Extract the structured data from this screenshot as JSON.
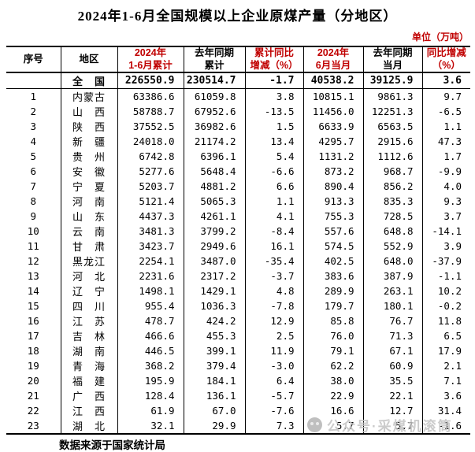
{
  "title": "2024年1-6月全国规模以上企业原煤产量（分地区）",
  "unit_label": "单位（万吨）",
  "colors": {
    "header_accent_red": "#c00000",
    "text_black": "#000000",
    "watermark_gray": "#c3c3c3"
  },
  "table": {
    "headers": [
      {
        "lines": [
          "序号"
        ],
        "color": "black"
      },
      {
        "lines": [
          "地区"
        ],
        "color": "black"
      },
      {
        "lines": [
          "2024年",
          "1-6月累计"
        ],
        "color": "red"
      },
      {
        "lines": [
          "去年同期",
          "累计"
        ],
        "color": "black"
      },
      {
        "lines": [
          "累计同比",
          "增减（%）"
        ],
        "color": "red"
      },
      {
        "lines": [
          "2024年",
          "6月当月"
        ],
        "color": "red"
      },
      {
        "lines": [
          "去年同期",
          "当月"
        ],
        "color": "black"
      },
      {
        "lines": [
          "同比增减",
          "（%）"
        ],
        "color": "red"
      }
    ],
    "total_row": {
      "seq": "",
      "region": "全　国",
      "values": [
        "226550.9",
        "230514.7",
        "-1.7",
        "40538.2",
        "39125.9",
        "3.6"
      ]
    },
    "rows": [
      {
        "seq": "1",
        "region": "内蒙古",
        "values": [
          "63386.6",
          "61059.8",
          "3.8",
          "10815.1",
          "9861.3",
          "9.7"
        ]
      },
      {
        "seq": "2",
        "region": "山　西",
        "values": [
          "58788.7",
          "67952.6",
          "-13.5",
          "11456.0",
          "12251.3",
          "-6.5"
        ]
      },
      {
        "seq": "3",
        "region": "陕　西",
        "values": [
          "37552.5",
          "36982.6",
          "1.5",
          "6633.9",
          "6563.5",
          "1.1"
        ]
      },
      {
        "seq": "4",
        "region": "新　疆",
        "values": [
          "24018.0",
          "21174.2",
          "13.4",
          "4295.7",
          "2915.6",
          "47.3"
        ]
      },
      {
        "seq": "5",
        "region": "贵　州",
        "values": [
          "6742.8",
          "6396.1",
          "5.4",
          "1131.2",
          "1112.6",
          "1.7"
        ]
      },
      {
        "seq": "6",
        "region": "安　徽",
        "values": [
          "5277.6",
          "5648.4",
          "-6.6",
          "873.2",
          "968.7",
          "-9.9"
        ]
      },
      {
        "seq": "7",
        "region": "宁　夏",
        "values": [
          "5203.7",
          "4881.2",
          "6.6",
          "890.4",
          "856.2",
          "4.0"
        ]
      },
      {
        "seq": "8",
        "region": "河　南",
        "values": [
          "5121.4",
          "5065.3",
          "1.1",
          "913.3",
          "835.3",
          "9.3"
        ]
      },
      {
        "seq": "9",
        "region": "山　东",
        "values": [
          "4437.3",
          "4261.1",
          "4.1",
          "755.3",
          "728.5",
          "3.7"
        ]
      },
      {
        "seq": "10",
        "region": "云　南",
        "values": [
          "3481.3",
          "3799.2",
          "-8.4",
          "557.6",
          "648.8",
          "-14.1"
        ]
      },
      {
        "seq": "11",
        "region": "甘　肃",
        "values": [
          "3423.7",
          "2949.6",
          "16.1",
          "574.5",
          "552.9",
          "3.9"
        ]
      },
      {
        "seq": "12",
        "region": "黑龙江",
        "values": [
          "2254.1",
          "3487.0",
          "-35.4",
          "402.5",
          "648.0",
          "-37.9"
        ]
      },
      {
        "seq": "13",
        "region": "河　北",
        "values": [
          "2231.6",
          "2317.2",
          "-3.7",
          "383.6",
          "387.9",
          "-1.1"
        ]
      },
      {
        "seq": "14",
        "region": "辽　宁",
        "values": [
          "1498.1",
          "1429.1",
          "4.8",
          "289.9",
          "263.1",
          "10.2"
        ]
      },
      {
        "seq": "15",
        "region": "四　川",
        "values": [
          "955.4",
          "1036.3",
          "-7.8",
          "179.7",
          "180.1",
          "-0.2"
        ]
      },
      {
        "seq": "16",
        "region": "江　苏",
        "values": [
          "478.7",
          "424.2",
          "12.9",
          "85.8",
          "76.7",
          "11.8"
        ]
      },
      {
        "seq": "17",
        "region": "吉　林",
        "values": [
          "466.6",
          "455.3",
          "2.5",
          "76.0",
          "71.3",
          "6.5"
        ]
      },
      {
        "seq": "18",
        "region": "湖　南",
        "values": [
          "446.5",
          "399.1",
          "11.9",
          "79.1",
          "67.1",
          "17.9"
        ]
      },
      {
        "seq": "19",
        "region": "青　海",
        "values": [
          "368.2",
          "379.4",
          "-3.0",
          "62.2",
          "60.9",
          "2.1"
        ]
      },
      {
        "seq": "20",
        "region": "福　建",
        "values": [
          "195.9",
          "184.1",
          "6.4",
          "38.0",
          "35.5",
          "7.1"
        ]
      },
      {
        "seq": "21",
        "region": "广　西",
        "values": [
          "128.4",
          "136.1",
          "-5.7",
          "22.9",
          "22.1",
          "3.6"
        ]
      },
      {
        "seq": "22",
        "region": "江　西",
        "values": [
          "61.9",
          "67.0",
          "-7.6",
          "16.6",
          "12.7",
          "31.4"
        ]
      },
      {
        "seq": "23",
        "region": "湖　北",
        "values": [
          "32.1",
          "29.9",
          "7.3",
          "5.7",
          "5.7",
          "-1.6"
        ]
      }
    ]
  },
  "footer": "数据来源于国家统计局",
  "watermark": {
    "icon": "wechat-official-account-icon",
    "text": "公众号·采煤机滚筒"
  }
}
